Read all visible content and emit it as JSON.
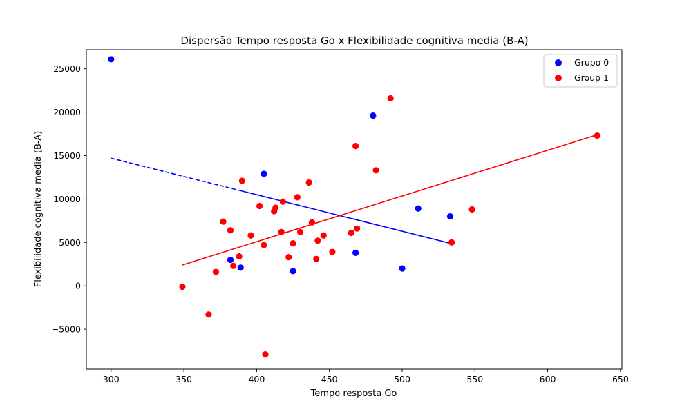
{
  "chart_data": {
    "type": "scatter",
    "title": "Dispersão Tempo resposta Go x Flexibilidade cognitiva media (B-A)",
    "xlabel": "Tempo resposta Go",
    "ylabel": "Flexibilidade cognitiva media (B-A)",
    "xlim": [
      283,
      651
    ],
    "ylim": [
      -9600,
      27200
    ],
    "xticks": [
      300,
      350,
      400,
      450,
      500,
      550,
      600,
      650
    ],
    "yticks": [
      -5000,
      0,
      5000,
      10000,
      15000,
      20000,
      25000
    ],
    "grid": false,
    "legend_position": "top-right",
    "series": [
      {
        "name": "Grupo 0",
        "color": "#0000ff",
        "points": [
          [
            300,
            26100
          ],
          [
            405,
            12900
          ],
          [
            480,
            19600
          ],
          [
            382,
            3000
          ],
          [
            389,
            2100
          ],
          [
            425,
            1700
          ],
          [
            468,
            3800
          ],
          [
            500,
            2000
          ],
          [
            511,
            8900
          ],
          [
            533,
            8000
          ]
        ],
        "trendline": {
          "from": [
            300,
            14700
          ],
          "to": [
            533,
            4900
          ],
          "style": "dashed-then-solid"
        }
      },
      {
        "name": "Group 1",
        "color": "#ff0000",
        "points": [
          [
            349,
            -100
          ],
          [
            367,
            -3300
          ],
          [
            372,
            1600
          ],
          [
            377,
            7400
          ],
          [
            382,
            6400
          ],
          [
            384,
            2300
          ],
          [
            388,
            3400
          ],
          [
            390,
            12100
          ],
          [
            396,
            5800
          ],
          [
            402,
            9200
          ],
          [
            405,
            4700
          ],
          [
            406,
            -7900
          ],
          [
            412,
            8600
          ],
          [
            413,
            9000
          ],
          [
            417,
            6200
          ],
          [
            418,
            9700
          ],
          [
            422,
            3300
          ],
          [
            425,
            4900
          ],
          [
            428,
            10200
          ],
          [
            430,
            6200
          ],
          [
            436,
            11900
          ],
          [
            438,
            7300
          ],
          [
            441,
            3100
          ],
          [
            442,
            5200
          ],
          [
            446,
            5800
          ],
          [
            452,
            3900
          ],
          [
            465,
            6100
          ],
          [
            468,
            16100
          ],
          [
            469,
            6600
          ],
          [
            482,
            13300
          ],
          [
            492,
            21600
          ],
          [
            534,
            5000
          ],
          [
            548,
            8800
          ],
          [
            634,
            17300
          ]
        ],
        "trendline": {
          "from": [
            349,
            2400
          ],
          "to": [
            634,
            17400
          ],
          "style": "solid"
        }
      }
    ]
  }
}
